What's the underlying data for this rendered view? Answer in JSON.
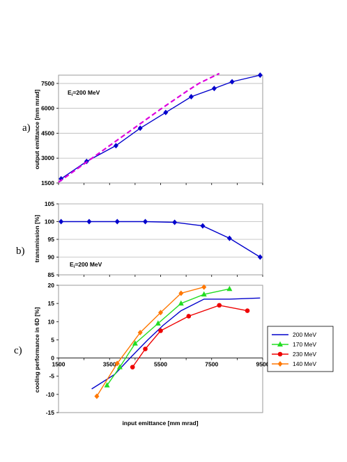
{
  "figure_labels": {
    "a": "a)",
    "b": "b)",
    "c": "c)",
    "x_axis_title": "input emittance [mm mrad]"
  },
  "chart_data": [
    {
      "id": "a",
      "type": "line",
      "ylabel": "output emittance [mm mrad]",
      "xlim": [
        1500,
        9500
      ],
      "ylim": [
        1500,
        8000
      ],
      "yticks": [
        1500,
        3000,
        4500,
        6000,
        7500
      ],
      "annotation": {
        "main": "E",
        "sub": "i",
        "rest": "=200 MeV"
      },
      "grid": "horizontal",
      "series": [
        {
          "color": "#0000cc",
          "style": "solid",
          "marker": "diamond",
          "x": [
            1600,
            2600,
            3750,
            4700,
            5700,
            6700,
            7600,
            8300,
            9400
          ],
          "y": [
            1750,
            2800,
            3750,
            4800,
            5750,
            6700,
            7200,
            7600,
            8000
          ]
        },
        {
          "color": "#dd00dd",
          "style": "dashed",
          "marker": "none",
          "x": [
            1500,
            2500,
            3500,
            4500,
            5500,
            6500,
            7000,
            7800
          ],
          "y": [
            1550,
            2650,
            3750,
            4850,
            5950,
            7000,
            7500,
            8100
          ]
        }
      ]
    },
    {
      "id": "b",
      "type": "line",
      "ylabel": "transmission [%]",
      "xlim": [
        1500,
        9500
      ],
      "ylim": [
        85,
        105
      ],
      "yticks": [
        85,
        90,
        95,
        100,
        105
      ],
      "annotation": {
        "main": "E",
        "sub": "i",
        "rest": "=200 MeV"
      },
      "grid": "horizontal",
      "series": [
        {
          "color": "#0000cc",
          "style": "solid",
          "marker": "diamond",
          "x": [
            1600,
            2700,
            3800,
            4900,
            6050,
            7150,
            8200,
            9400
          ],
          "y": [
            100,
            100,
            100,
            100,
            99.8,
            98.8,
            95.3,
            90
          ]
        }
      ]
    },
    {
      "id": "c",
      "type": "line",
      "ylabel": "cooling performance in 6D [%]",
      "xlim": [
        1500,
        9500
      ],
      "ylim": [
        -15,
        20
      ],
      "xticks": [
        1500,
        3500,
        5500,
        7500,
        9500
      ],
      "yticks": [
        -15,
        -10,
        -5,
        0,
        5,
        10,
        15,
        20
      ],
      "grid": "none",
      "legend_position": "right",
      "series": [
        {
          "name": "200 MeV",
          "color": "#0000cc",
          "marker": "none",
          "x": [
            2800,
            3700,
            4300,
            5000,
            5600,
            6300,
            7200,
            8200,
            9400
          ],
          "y": [
            -8.5,
            -4.5,
            0,
            5,
            9,
            13,
            16.2,
            16.2,
            16.5
          ]
        },
        {
          "name": "170 MeV",
          "color": "#22dd22",
          "marker": "triangle",
          "x": [
            3400,
            3900,
            4500,
            5400,
            6300,
            7200,
            8200
          ],
          "y": [
            -7.5,
            -2.5,
            4,
            9.5,
            15,
            17.5,
            19
          ]
        },
        {
          "name": "230 MeV",
          "color": "#ee0000",
          "marker": "circle",
          "x": [
            4400,
            4900,
            5500,
            6600,
            7800,
            8900
          ],
          "y": [
            -2.5,
            2.5,
            7.5,
            11.5,
            14.5,
            13
          ]
        },
        {
          "name": "140 MeV",
          "color": "#ff7700",
          "marker": "diamond",
          "x": [
            3000,
            3800,
            4700,
            5500,
            6300,
            7200
          ],
          "y": [
            -10.5,
            -1.5,
            7,
            12.5,
            17.8,
            19.5
          ]
        }
      ]
    }
  ]
}
